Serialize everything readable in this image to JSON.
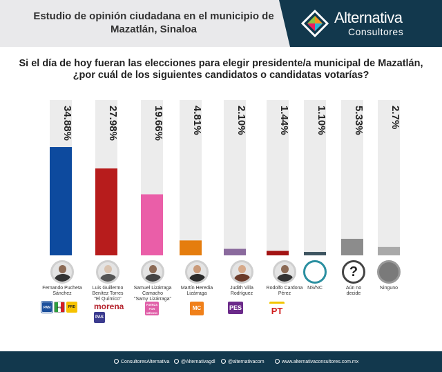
{
  "header": {
    "title_line1": "Estudio de opinión ciudadana en el municipio de",
    "title_line2": "Mazatlán, Sinaloa",
    "brand_name": "Alternativa",
    "brand_sub": "Consultores"
  },
  "question": {
    "line1": "Si el día de hoy fueran las elecciones para elegir presidente/a municipal de Mazatlán,",
    "line2": "¿por cuál de los siguientes candidatos o candidatas votarías?"
  },
  "chart_data": {
    "type": "bar",
    "title": "",
    "xlabel": "",
    "ylabel": "",
    "ylim": [
      0,
      50
    ],
    "categories": [
      "Fernando Pucheta Sánchez",
      "Luis Guillermo Benítez Torres \"El Químico\"",
      "Samuel Lizárraga Camacho \"Samy Lizárraga\"",
      "Martín Heredia Lizárraga",
      "Judith Villa Rodríguez",
      "Rodolfo Cardona Pérez",
      "NS/NC",
      "Aún no decide",
      "Ninguno"
    ],
    "values": [
      34.88,
      27.98,
      19.66,
      4.81,
      2.1,
      1.44,
      1.1,
      5.33,
      2.7
    ],
    "labels": [
      "34.88%",
      "27.98%",
      "19.66%",
      "4.81%",
      "2.10%",
      "1.44%",
      "1.10%",
      "5.33%",
      "2.7%"
    ],
    "colors": [
      "#0d4a9e",
      "#b71c1c",
      "#ea5ea8",
      "#e57d0e",
      "#8a6a9d",
      "#a31414",
      "#3d5460",
      "#8c8c8c",
      "#a9a9a9"
    ]
  },
  "candidates": [
    {
      "lines": [
        "Fernando Pucheta",
        "Sánchez"
      ]
    },
    {
      "lines": [
        "Luis Guillermo",
        "Benítez Torres",
        "\"El Químico\""
      ]
    },
    {
      "lines": [
        "Samuel Lizárraga",
        "Camacho",
        "\"Samy Lizárraga\""
      ]
    },
    {
      "lines": [
        "Martín Heredia",
        "Lizárraga"
      ]
    },
    {
      "lines": [
        "Judith Villa",
        "Rodríguez"
      ]
    },
    {
      "lines": [
        "Rodolfo Cardona",
        "Pérez"
      ]
    },
    {
      "lines": [
        "NS/NC"
      ]
    },
    {
      "lines": [
        "Aún no",
        "decide"
      ]
    },
    {
      "lines": [
        "Ninguno"
      ]
    }
  ],
  "parties": {
    "pan": "PAN",
    "pri": "PRI",
    "prd": "PRD",
    "morena": "morena",
    "pas": "PAS",
    "pbm": "FUERZA POR MÉXICO",
    "mc": "MC",
    "pes": "PES",
    "pt": "PT"
  },
  "footer": {
    "facebook": "ConsultoresAlternativa",
    "twitter": "@Alternativagdl",
    "instagram": "@alternativacom",
    "website": "www.alternativaconsultores.com.mx"
  }
}
